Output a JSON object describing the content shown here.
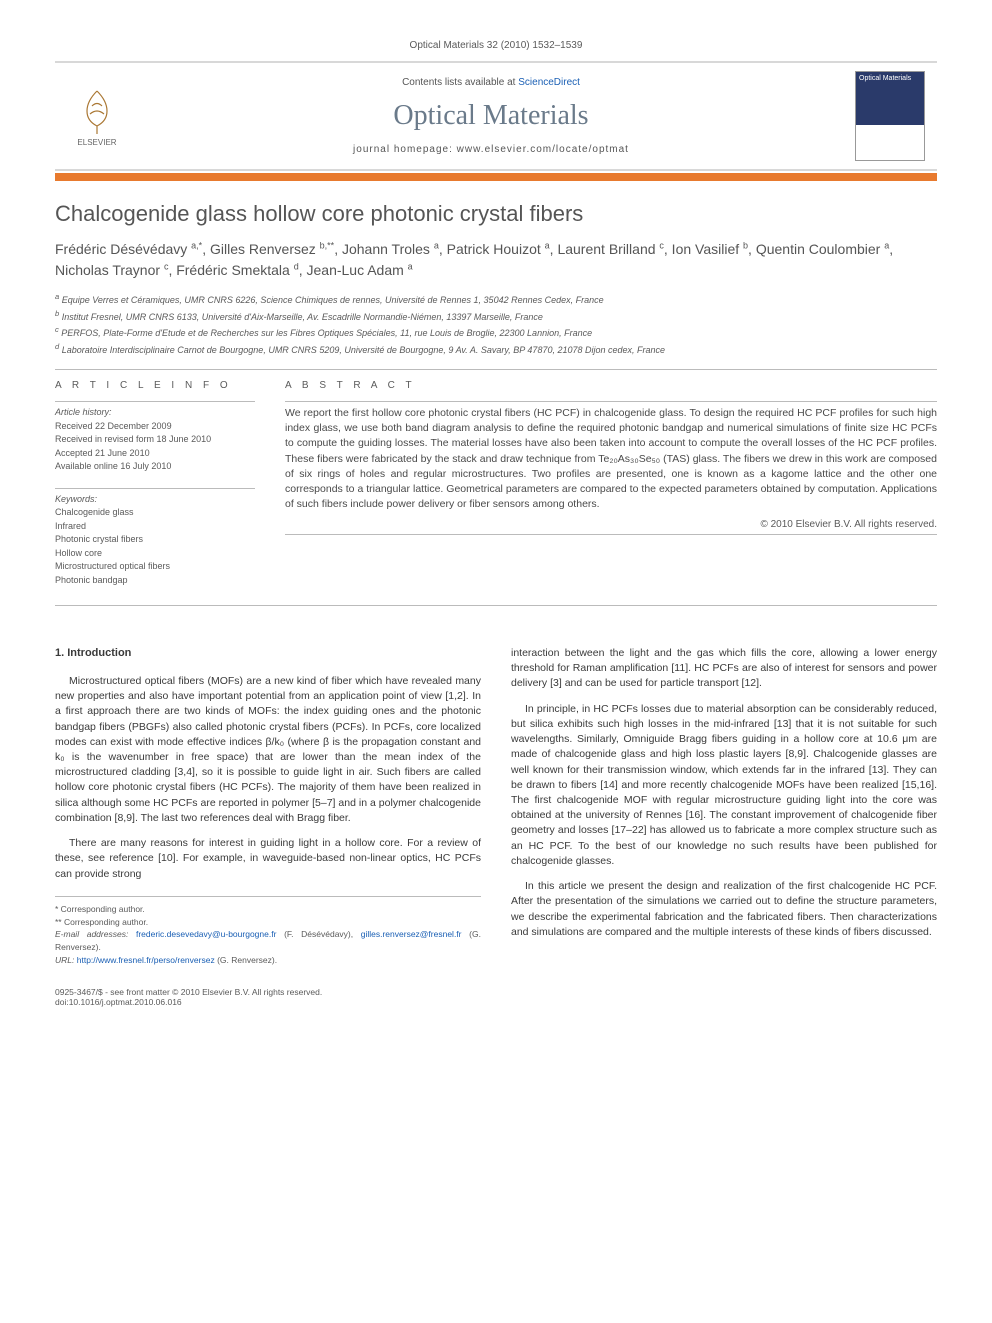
{
  "citation": "Optical Materials 32 (2010) 1532–1539",
  "header": {
    "publisher": "ELSEVIER",
    "contents_prefix": "Contents lists available at ",
    "contents_link": "ScienceDirect",
    "journal": "Optical Materials",
    "homepage_prefix": "journal homepage: ",
    "homepage": "www.elsevier.com/locate/optmat",
    "cover_label": "Optical Materials"
  },
  "title": "Chalcogenide glass hollow core photonic crystal fibers",
  "authors_html": "Frédéric Désévédavy <sup>a,*</sup>, Gilles Renversez <sup>b,**</sup>, Johann Troles <sup>a</sup>, Patrick Houizot <sup>a</sup>, Laurent Brilland <sup>c</sup>, Ion Vasilief <sup>b</sup>, Quentin Coulombier <sup>a</sup>, Nicholas Traynor <sup>c</sup>, Frédéric Smektala <sup>d</sup>, Jean-Luc Adam <sup>a</sup>",
  "affiliations": [
    "a Equipe Verres et Céramiques, UMR CNRS 6226, Science Chimiques de rennes, Université de Rennes 1, 35042 Rennes Cedex, France",
    "b Institut Fresnel, UMR CNRS 6133, Université d'Aix-Marseille, Av. Escadrille Normandie-Niémen, 13397 Marseille, France",
    "c PERFOS, Plate-Forme d'Etude et de Recherches sur les Fibres Optiques Spéciales, 11, rue Louis de Broglie, 22300 Lannion, France",
    "d Laboratoire Interdisciplinaire Carnot de Bourgogne, UMR CNRS 5209, Université de Bourgogne, 9 Av. A. Savary, BP 47870, 21078 Dijon cedex, France"
  ],
  "article_info": {
    "label": "A R T I C L E   I N F O",
    "history_label": "Article history:",
    "history": [
      "Received 22 December 2009",
      "Received in revised form 18 June 2010",
      "Accepted 21 June 2010",
      "Available online 16 July 2010"
    ],
    "keywords_label": "Keywords:",
    "keywords": [
      "Chalcogenide glass",
      "Infrared",
      "Photonic crystal fibers",
      "Hollow core",
      "Microstructured optical fibers",
      "Photonic bandgap"
    ]
  },
  "abstract": {
    "label": "A B S T R A C T",
    "text": "We report the first hollow core photonic crystal fibers (HC PCF) in chalcogenide glass. To design the required HC PCF profiles for such high index glass, we use both band diagram analysis to define the required photonic bandgap and numerical simulations of finite size HC PCFs to compute the guiding losses. The material losses have also been taken into account to compute the overall losses of the HC PCF profiles. These fibers were fabricated by the stack and draw technique from Te₂₀As₃₀Se₅₀ (TAS) glass. The fibers we drew in this work are composed of six rings of holes and regular microstructures. Two profiles are presented, one is known as a kagome lattice and the other one corresponds to a triangular lattice. Geometrical parameters are compared to the expected parameters obtained by computation. Applications of such fibers include power delivery or fiber sensors among others.",
    "copyright": "© 2010 Elsevier B.V. All rights reserved."
  },
  "body": {
    "section_heading": "1. Introduction",
    "p1": "Microstructured optical fibers (MOFs) are a new kind of fiber which have revealed many new properties and also have important potential from an application point of view [1,2]. In a first approach there are two kinds of MOFs: the index guiding ones and the photonic bandgap fibers (PBGFs) also called photonic crystal fibers (PCFs). In PCFs, core localized modes can exist with mode effective indices β/k₀ (where β is the propagation constant and k₀ is the wavenumber in free space) that are lower than the mean index of the microstructured cladding [3,4], so it is possible to guide light in air. Such fibers are called hollow core photonic crystal fibers (HC PCFs). The majority of them have been realized in silica although some HC PCFs are reported in polymer [5–7] and in a polymer chalcogenide combination [8,9]. The last two references deal with Bragg fiber.",
    "p2": "There are many reasons for interest in guiding light in a hollow core. For a review of these, see reference [10]. For example, in waveguide-based non-linear optics, HC PCFs can provide strong",
    "p3": "interaction between the light and the gas which fills the core, allowing a lower energy threshold for Raman amplification [11]. HC PCFs are also of interest for sensors and power delivery [3] and can be used for particle transport [12].",
    "p4": "In principle, in HC PCFs losses due to material absorption can be considerably reduced, but silica exhibits such high losses in the mid-infrared [13] that it is not suitable for such wavelengths. Similarly, Omniguide Bragg fibers guiding in a hollow core at 10.6 μm are made of chalcogenide glass and high loss plastic layers [8,9]. Chalcogenide glasses are well known for their transmission window, which extends far in the infrared [13]. They can be drawn to fibers [14] and more recently chalcogenide MOFs have been realized [15,16]. The first chalcogenide MOF with regular microstructure guiding light into the core was obtained at the university of Rennes [16]. The constant improvement of chalcogenide fiber geometry and losses [17–22] has allowed us to fabricate a more complex structure such as an HC PCF. To the best of our knowledge no such results have been published for chalcogenide glasses.",
    "p5": "In this article we present the design and realization of the first chalcogenide HC PCF. After the presentation of the simulations we carried out to define the structure parameters, we describe the experimental fabrication and the fabricated fibers. Then characterizations and simulations are compared and the multiple interests of these kinds of fibers discussed."
  },
  "footnotes": {
    "star": "* Corresponding author.",
    "dstar": "** Corresponding author.",
    "email_label": "E-mail addresses:",
    "email1": "frederic.desevedavy@u-bourgogne.fr",
    "email1_name": "(F. Désévédavy),",
    "email2": "gilles.renversez@fresnel.fr",
    "email2_name": "(G. Renversez).",
    "url_label": "URL:",
    "url": "http://www.fresnel.fr/perso/renversez",
    "url_name": "(G. Renversez)."
  },
  "footer": {
    "left": "0925-3467/$ - see front matter © 2010 Elsevier B.V. All rights reserved.",
    "doi": "doi:10.1016/j.optmat.2010.06.016"
  },
  "colors": {
    "accent_bar": "#e87a2e",
    "link": "#1a5fb4",
    "journal_title": "#6a7a8a",
    "text_muted": "#5a5a5a"
  }
}
